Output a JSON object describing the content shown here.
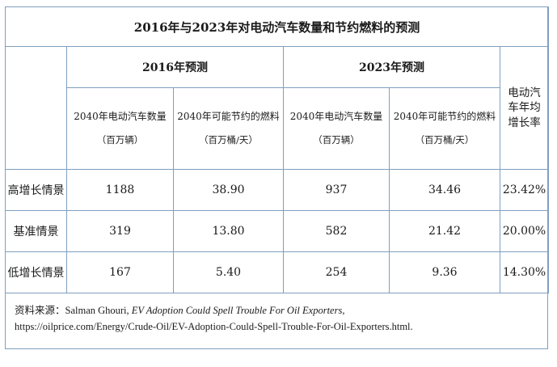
{
  "title": "2016年与2023年对电动汽车数量和节约燃料的预测",
  "groups": [
    {
      "label": "2016年预测"
    },
    {
      "label": "2023年预测"
    }
  ],
  "rate_header": [
    "电动汽",
    "车年均",
    "增长率"
  ],
  "subheaders": [
    {
      "label": "2040年电动汽车数量",
      "unit": "（百万辆）"
    },
    {
      "label": "2040年可能节约的燃料",
      "unit": "（百万桶/天）"
    },
    {
      "label": "2040年电动汽车数量",
      "unit": "（百万辆）"
    },
    {
      "label": "2040年可能节约的燃料",
      "unit": "（百万桶/天）"
    }
  ],
  "rows": [
    {
      "scenario": "高增长情景",
      "values": [
        "1188",
        "38.90",
        "937",
        "34.46",
        "23.42%"
      ]
    },
    {
      "scenario": "基准情景",
      "values": [
        "319",
        "13.80",
        "582",
        "21.42",
        "20.00%"
      ]
    },
    {
      "scenario": "低增长情景",
      "values": [
        "167",
        "5.40",
        "254",
        "9.36",
        "14.30%"
      ]
    }
  ],
  "source": {
    "prefix": "资料来源：Salman Ghouri, ",
    "italic": "EV Adoption Could Spell Trouble For Oil Exporters,",
    "url": "https://oilprice.com/Energy/Crude-Oil/EV-Adoption-Could-Spell-Trouble-For-Oil-Exporters.html."
  }
}
